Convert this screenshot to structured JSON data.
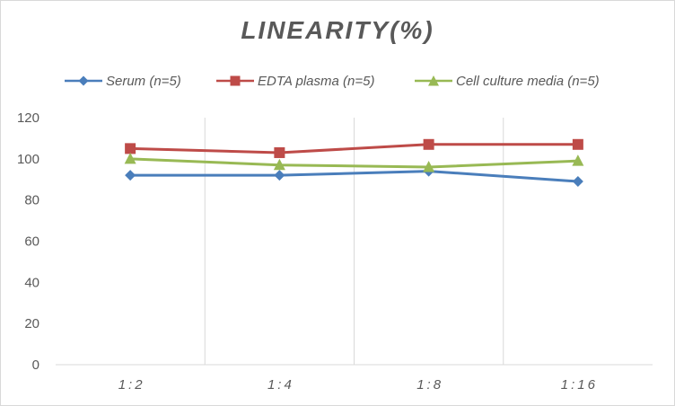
{
  "chart_data": {
    "type": "line",
    "title": "LINEARITY(%)",
    "categories": [
      "1:2",
      "1:4",
      "1:8",
      "1:16"
    ],
    "series": [
      {
        "name": "Serum (n=5)",
        "values": [
          92,
          92,
          94,
          89
        ],
        "color": "#4a7ebb",
        "marker": "diamond"
      },
      {
        "name": "EDTA plasma (n=5)",
        "values": [
          105,
          103,
          107,
          107
        ],
        "color": "#be4b48",
        "marker": "square"
      },
      {
        "name": "Cell culture media (n=5)",
        "values": [
          100,
          97,
          96,
          99
        ],
        "color": "#98b954",
        "marker": "triangle"
      }
    ],
    "ylim": [
      0,
      120
    ],
    "yticks": [
      0,
      20,
      40,
      60,
      80,
      100,
      120
    ],
    "grid": "vertical category separators",
    "legend": "top"
  }
}
